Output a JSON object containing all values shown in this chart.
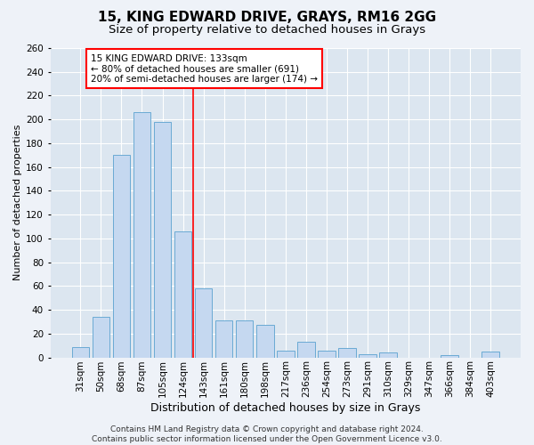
{
  "title1": "15, KING EDWARD DRIVE, GRAYS, RM16 2GG",
  "title2": "Size of property relative to detached houses in Grays",
  "xlabel": "Distribution of detached houses by size in Grays",
  "ylabel": "Number of detached properties",
  "categories": [
    "31sqm",
    "50sqm",
    "68sqm",
    "87sqm",
    "105sqm",
    "124sqm",
    "143sqm",
    "161sqm",
    "180sqm",
    "198sqm",
    "217sqm",
    "236sqm",
    "254sqm",
    "273sqm",
    "291sqm",
    "310sqm",
    "329sqm",
    "347sqm",
    "366sqm",
    "384sqm",
    "403sqm"
  ],
  "values": [
    9,
    34,
    170,
    206,
    198,
    106,
    58,
    31,
    31,
    27,
    6,
    13,
    6,
    8,
    3,
    4,
    0,
    0,
    2,
    0,
    5
  ],
  "bar_color": "#c5d8f0",
  "bar_edge_color": "#6aaad4",
  "vline_color": "red",
  "annotation_text": "15 KING EDWARD DRIVE: 133sqm\n← 80% of detached houses are smaller (691)\n20% of semi-detached houses are larger (174) →",
  "annotation_box_color": "white",
  "annotation_box_edge": "red",
  "footer1": "Contains HM Land Registry data © Crown copyright and database right 2024.",
  "footer2": "Contains public sector information licensed under the Open Government Licence v3.0.",
  "bg_color": "#eef2f8",
  "plot_bg_color": "#dce6f0",
  "ylim": [
    0,
    260
  ],
  "yticks": [
    0,
    20,
    40,
    60,
    80,
    100,
    120,
    140,
    160,
    180,
    200,
    220,
    240,
    260
  ],
  "title1_fontsize": 11,
  "title2_fontsize": 9.5,
  "xlabel_fontsize": 9,
  "ylabel_fontsize": 8,
  "tick_fontsize": 7.5,
  "footer_fontsize": 6.5,
  "annot_fontsize": 7.5
}
